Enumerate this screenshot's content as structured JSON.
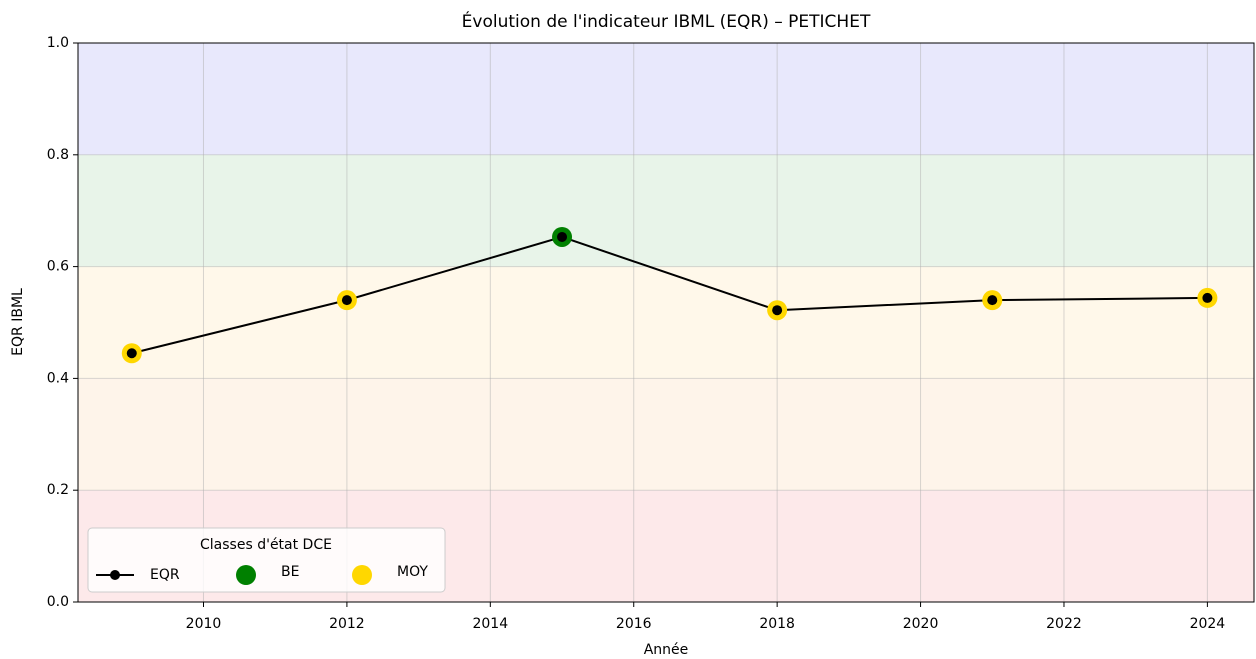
{
  "chart_data": {
    "type": "line",
    "title": "Évolution de l'indicateur IBML (EQR) – PETICHET",
    "x_label": "Année",
    "y_label": "EQR IBML",
    "x": [
      2009,
      2012,
      2015,
      2018,
      2021,
      2024
    ],
    "series": [
      {
        "name": "EQR",
        "color": "#000000",
        "values": [
          0.445,
          0.54,
          0.653,
          0.522,
          0.54,
          0.544
        ]
      }
    ],
    "point_classes": [
      "MOY",
      "MOY",
      "BE",
      "MOY",
      "MOY",
      "MOY"
    ],
    "classes": [
      {
        "name": "BE",
        "color": "#008000"
      },
      {
        "name": "MOY",
        "color": "#ffd700"
      }
    ],
    "legend_title": "Classes d'état DCE",
    "legend": "lower left",
    "bands": [
      {
        "from": 0,
        "to": 0.2,
        "color": "#fde9ea"
      },
      {
        "from": 0.2,
        "to": 0.4,
        "color": "#fef4ea"
      },
      {
        "from": 0.4,
        "to": 0.6,
        "color": "#fff8ea"
      },
      {
        "from": 0.6,
        "to": 0.8,
        "color": "#e8f4e9"
      },
      {
        "from": 0.8,
        "to": 1.0,
        "color": "#e8e8fc"
      }
    ],
    "xlim": [
      2008.25,
      2024.65
    ],
    "ylim": [
      0,
      1
    ],
    "xticks": [
      2010,
      2012,
      2014,
      2016,
      2018,
      2020,
      2022,
      2024
    ],
    "yticks": [
      {
        "value": 0,
        "label": "0.0"
      },
      0.2,
      0.4,
      0.6,
      0.8,
      {
        "value": 1,
        "label": "1.0"
      }
    ],
    "grid": true
  }
}
